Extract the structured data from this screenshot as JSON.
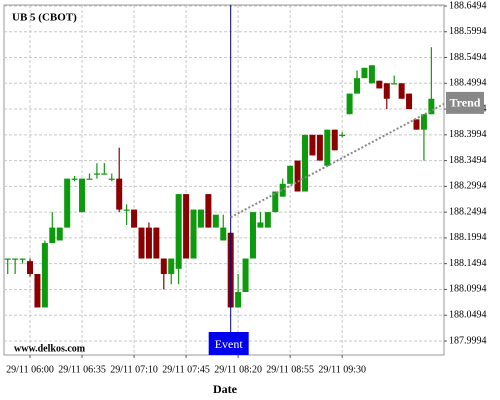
{
  "chart_data": {
    "type": "candlestick",
    "title": "UB 5 (CBOT)",
    "watermark": "www.delkos.com",
    "xlabel": "Date",
    "x": [
      "29/11 05:45",
      "29/11 05:50",
      "29/11 05:55",
      "29/11 06:00",
      "29/11 06:05",
      "29/11 06:10",
      "29/11 06:15",
      "29/11 06:20",
      "29/11 06:25",
      "29/11 06:30",
      "29/11 06:35",
      "29/11 06:40",
      "29/11 06:45",
      "29/11 06:50",
      "29/11 06:55",
      "29/11 07:00",
      "29/11 07:05",
      "29/11 07:10",
      "29/11 07:15",
      "29/11 07:20",
      "29/11 07:25",
      "29/11 07:30",
      "29/11 07:35",
      "29/11 07:40",
      "29/11 07:45",
      "29/11 07:50",
      "29/11 07:55",
      "29/11 08:00",
      "29/11 08:05",
      "29/11 08:10",
      "29/11 08:15",
      "29/11 08:20",
      "29/11 08:25",
      "29/11 08:30",
      "29/11 08:35",
      "29/11 08:40",
      "29/11 08:45",
      "29/11 08:50",
      "29/11 08:55",
      "29/11 09:00",
      "29/11 09:05",
      "29/11 09:10",
      "29/11 09:15",
      "29/11 09:20",
      "29/11 09:25",
      "29/11 09:30",
      "29/11 09:35",
      "29/11 09:40",
      "29/11 09:45",
      "29/11 09:50",
      "29/11 09:55",
      "29/11 10:00",
      "29/11 10:05",
      "29/11 10:10",
      "29/11 10:15",
      "29/11 10:20",
      "29/11 10:25",
      "29/11 10:30"
    ],
    "open": [
      188.1594,
      188.1594,
      188.1594,
      188.1544,
      188.1294,
      188.0644,
      188.1894,
      188.1944,
      188.2194,
      188.3144,
      188.2494,
      188.3144,
      188.3244,
      188.3244,
      188.3144,
      188.3144,
      188.2544,
      188.2544,
      188.2194,
      188.2194,
      188.2194,
      188.1594,
      188.1294,
      188.1394,
      188.2844,
      188.1594,
      188.2194,
      188.2844,
      188.2194,
      188.1944,
      188.2094,
      188.0644,
      188.0944,
      188.1594,
      188.2194,
      188.2194,
      188.2494,
      188.2794,
      188.3044,
      188.3494,
      188.2894,
      188.3994,
      188.3994,
      188.3394,
      188.4094,
      188.3994,
      188.4394,
      188.4794,
      188.5094,
      188.4994,
      188.5044,
      188.4994,
      188.4994,
      188.4994,
      188.4794,
      188.4294,
      188.4094,
      188.4394
    ],
    "high": [
      188.1594,
      188.1594,
      188.1594,
      188.1594,
      188.1294,
      188.1944,
      188.2494,
      188.2194,
      188.3144,
      188.3194,
      188.3144,
      188.3244,
      188.3444,
      188.3444,
      188.3244,
      188.3744,
      188.2644,
      188.2544,
      188.2194,
      188.2294,
      188.2194,
      188.1594,
      188.1594,
      188.2844,
      188.2844,
      188.2544,
      188.2544,
      188.2844,
      188.2444,
      188.2444,
      188.2094,
      188.1294,
      188.1594,
      188.2494,
      188.2494,
      188.2494,
      188.2894,
      188.3144,
      188.3394,
      188.3494,
      188.3994,
      188.3994,
      188.3994,
      188.4094,
      188.4094,
      188.4044,
      188.4794,
      188.5244,
      188.5294,
      188.5344,
      188.5044,
      188.4994,
      188.5144,
      188.4994,
      188.4794,
      188.4294,
      188.4394,
      188.5694
    ],
    "low": [
      188.1294,
      188.1294,
      188.1494,
      188.1244,
      188.0644,
      188.0644,
      188.1894,
      188.1944,
      188.2194,
      188.3094,
      188.2494,
      188.3144,
      188.3144,
      188.3244,
      188.3094,
      188.2494,
      188.2244,
      188.2194,
      188.1594,
      188.1594,
      188.1594,
      188.0994,
      188.1094,
      188.1094,
      188.1594,
      188.1594,
      188.2194,
      188.2194,
      188.2194,
      188.1944,
      188.0644,
      188.0644,
      188.0944,
      188.1594,
      188.2194,
      188.2194,
      188.2494,
      188.2794,
      188.3044,
      188.2894,
      188.2894,
      188.3594,
      188.3494,
      188.3394,
      188.3694,
      188.3944,
      188.4394,
      188.4794,
      188.5094,
      188.4994,
      188.4894,
      188.4494,
      188.4994,
      188.4694,
      188.4494,
      188.4094,
      188.3494,
      188.4394
    ],
    "close": [
      188.1594,
      188.1594,
      188.1594,
      188.1294,
      188.0644,
      188.1894,
      188.2194,
      188.2194,
      188.3144,
      188.3144,
      188.3144,
      188.3144,
      188.3244,
      188.3244,
      188.3144,
      188.2544,
      188.2544,
      188.2194,
      188.1594,
      188.1594,
      188.1594,
      188.1294,
      188.1594,
      188.2844,
      188.1594,
      188.2544,
      188.2544,
      188.2194,
      188.2444,
      188.2194,
      188.0644,
      188.0944,
      188.1594,
      188.2494,
      188.2294,
      188.2494,
      188.2894,
      188.3044,
      188.3394,
      188.2894,
      188.3994,
      188.3594,
      188.3494,
      188.4094,
      188.3694,
      188.3994,
      188.4794,
      188.5094,
      188.5294,
      188.5344,
      188.4894,
      188.4694,
      188.4994,
      188.4694,
      188.4494,
      188.4094,
      188.4394,
      188.4694
    ],
    "up_color": "#0d9a0d",
    "down_color": "#8b0000",
    "ylim": [
      187.9722,
      188.6513
    ],
    "yticks": [
      187.9994,
      188.0494,
      188.0994,
      188.1494,
      188.1994,
      188.2494,
      188.2994,
      188.3494,
      188.3994,
      188.4494,
      188.4994,
      188.5494,
      188.5994,
      188.6494
    ],
    "xticks": [
      "29/11 06:00",
      "29/11 06:35",
      "29/11 07:10",
      "29/11 07:45",
      "29/11 08:20",
      "29/11 08:55",
      "29/11 09:30"
    ],
    "grid": true,
    "event": {
      "label": "Event",
      "x": "29/11 08:15",
      "color": "#0000ee"
    },
    "trend": {
      "label": "Trend",
      "start": {
        "x": "29/11 08:15",
        "y": 188.2394
      },
      "end": {
        "x": "29/11 10:30",
        "y": 188.4594
      },
      "color": "#888888"
    }
  }
}
